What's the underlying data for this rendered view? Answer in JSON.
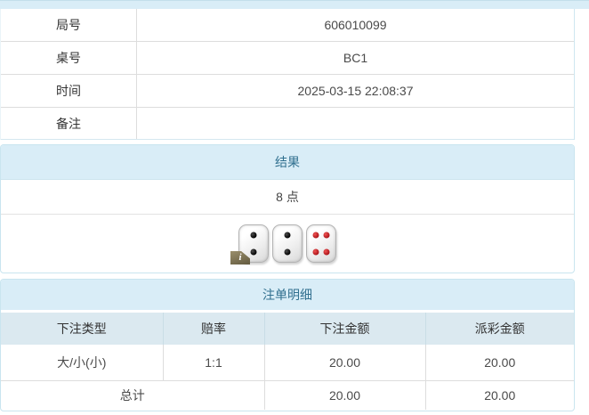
{
  "info_table": {
    "rows": [
      {
        "label": "局号",
        "value": "606010099"
      },
      {
        "label": "桌号",
        "value": "BC1"
      },
      {
        "label": "时间",
        "value": "2025-03-15 22:08:37"
      },
      {
        "label": "备注",
        "value": ""
      }
    ]
  },
  "result_section": {
    "title": "结果",
    "points": "8 点",
    "dice": [
      {
        "value": 2,
        "color": "black"
      },
      {
        "value": 2,
        "color": "black"
      },
      {
        "value": 4,
        "color": "red"
      }
    ],
    "info_badge": "i"
  },
  "bets_section": {
    "title": "注单明细",
    "columns": [
      "下注类型",
      "赔率",
      "下注金额",
      "派彩金额"
    ],
    "rows": [
      {
        "bet_type": "大/小(小)",
        "odds": "1:1",
        "bet_amount": "20.00",
        "payout": "20.00"
      }
    ],
    "total": {
      "label": "总计",
      "bet_amount": "20.00",
      "payout": "20.00"
    }
  },
  "colors": {
    "header_bg": "#d9edf7",
    "table_header_bg": "#dbe9f0",
    "header_text": "#31708f",
    "odds_red": "#e03333",
    "dice_red_dot": "#a70f14",
    "panel_border": "#c9e5ef"
  }
}
